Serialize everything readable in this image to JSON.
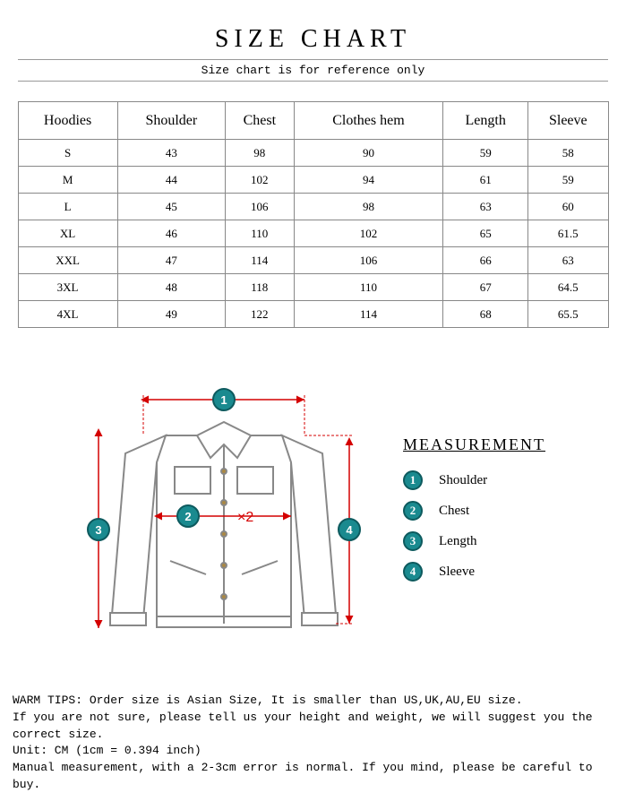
{
  "header": {
    "title": "SIZE CHART",
    "subtitle": "Size chart is for reference only"
  },
  "table": {
    "columns": [
      "Hoodies",
      "Shoulder",
      "Chest",
      "Clothes hem",
      "Length",
      "Sleeve"
    ],
    "rows": [
      [
        "S",
        "43",
        "98",
        "90",
        "59",
        "58"
      ],
      [
        "M",
        "44",
        "102",
        "94",
        "61",
        "59"
      ],
      [
        "L",
        "45",
        "106",
        "98",
        "63",
        "60"
      ],
      [
        "XL",
        "46",
        "110",
        "102",
        "65",
        "61.5"
      ],
      [
        "XXL",
        "47",
        "114",
        "106",
        "66",
        "63"
      ],
      [
        "3XL",
        "48",
        "118",
        "110",
        "67",
        "64.5"
      ],
      [
        "4XL",
        "49",
        "122",
        "114",
        "68",
        "65.5"
      ]
    ],
    "border_color": "#888888",
    "header_fontsize": 16,
    "cell_fontsize": 13
  },
  "diagram": {
    "jacket_stroke": "#888888",
    "arrow_color": "#d40000",
    "badge_bg": "#1a8a8f",
    "badge_border": "#0d5a5e",
    "badge_text_color": "#ffffff",
    "x2_label": "×2",
    "badges": [
      "1",
      "2",
      "3",
      "4"
    ]
  },
  "measurement": {
    "title": "MEASUREMENT",
    "items": [
      {
        "num": "1",
        "label": "Shoulder"
      },
      {
        "num": "2",
        "label": "Chest"
      },
      {
        "num": "3",
        "label": "Length"
      },
      {
        "num": "4",
        "label": "Sleeve"
      }
    ]
  },
  "tips": {
    "line1": "WARM TIPS: Order size is Asian Size, It is smaller than US,UK,AU,EU size.",
    "line2": "If you are not sure, please tell us your height and weight, we will suggest you the correct size.",
    "line3": "Unit: CM (1cm = 0.394 inch)",
    "line4": "Manual measurement, with a 2-3cm error is normal. If you mind, please be careful to buy."
  }
}
